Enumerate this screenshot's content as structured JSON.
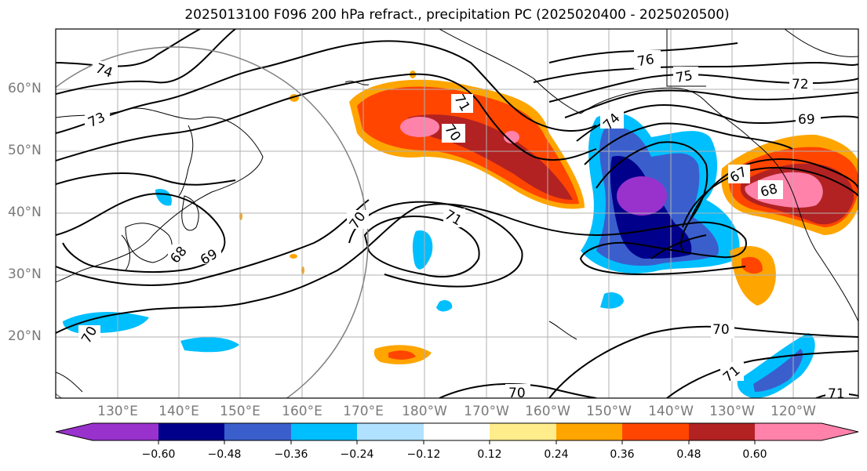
{
  "title": "2025013100 F096 200 hPa refract., precipitation PC (2025020400 - 2025020500)",
  "map": {
    "lat_labels": [
      "60°N",
      "50°N",
      "40°N",
      "30°N",
      "20°N"
    ],
    "lon_labels": [
      "130°E",
      "140°E",
      "150°E",
      "160°E",
      "170°E",
      "180°W",
      "170°W",
      "160°W",
      "150°W",
      "140°W",
      "130°W",
      "120°W"
    ],
    "contour_labels": [
      "74",
      "73",
      "71",
      "70",
      "69",
      "68",
      "70",
      "71",
      "70",
      "76",
      "75",
      "72",
      "74",
      "69",
      "67",
      "68",
      "70",
      "71",
      "70",
      "71"
    ]
  },
  "colorbar": {
    "ticks": [
      "−0.60",
      "−0.48",
      "−0.36",
      "−0.24",
      "−0.12",
      "0.12",
      "0.24",
      "0.36",
      "0.48",
      "0.60"
    ],
    "colors": [
      "#9932cc",
      "#00008b",
      "#3a5fcd",
      "#00bfff",
      "#b0e2ff",
      "#ffffff",
      "#ffec8b",
      "#ffa500",
      "#ff4500",
      "#b22222",
      "#ff82ab"
    ]
  }
}
